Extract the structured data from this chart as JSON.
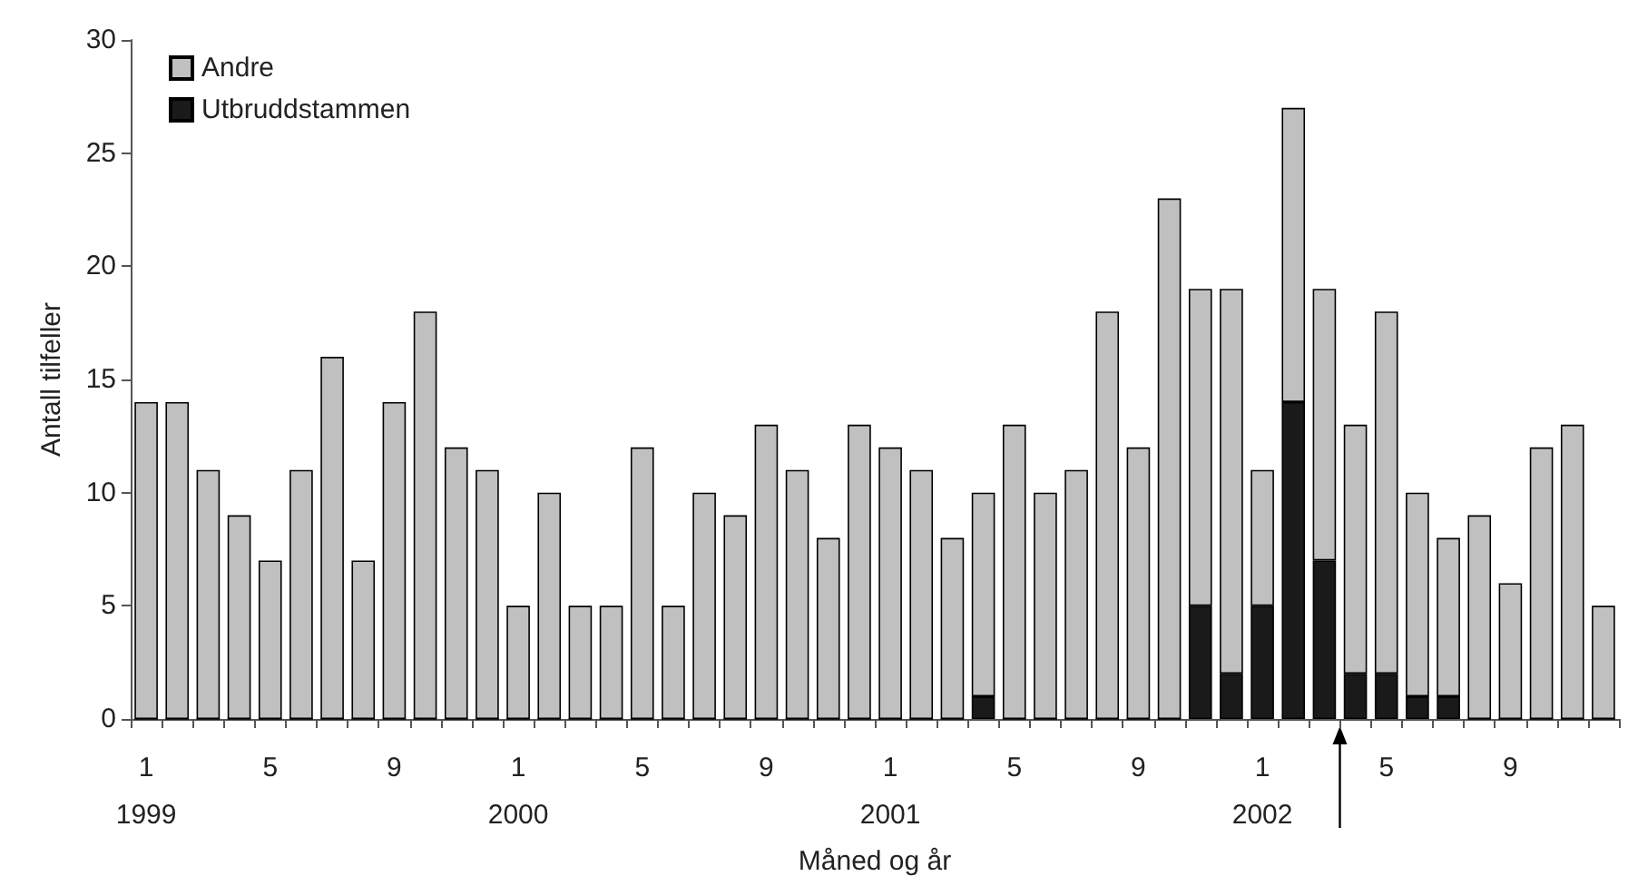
{
  "chart_data": {
    "type": "bar",
    "stacked": true,
    "xlabel": "Måned og år",
    "ylabel": "Antall tilfeller",
    "categories": [
      "1\n1999",
      null,
      null,
      null,
      "5",
      null,
      null,
      null,
      "9",
      null,
      null,
      null,
      "1\n2000",
      null,
      null,
      null,
      "5",
      null,
      null,
      null,
      "9",
      null,
      null,
      null,
      "1\n2001",
      null,
      null,
      null,
      "5",
      null,
      null,
      null,
      "9",
      null,
      null,
      null,
      "1\n2002",
      null,
      null,
      null,
      "5",
      null,
      null,
      null,
      "9",
      null,
      null,
      null
    ],
    "series": [
      {
        "name": "Utbruddstammen",
        "color": "#1a1a1a",
        "values": [
          0,
          0,
          0,
          0,
          0,
          0,
          0,
          0,
          0,
          0,
          0,
          0,
          0,
          0,
          0,
          0,
          0,
          0,
          0,
          0,
          0,
          0,
          0,
          0,
          0,
          0,
          0,
          1,
          0,
          0,
          0,
          0,
          0,
          0,
          5,
          2,
          5,
          14,
          7,
          2,
          2,
          1,
          1,
          0,
          0,
          0,
          0,
          0
        ]
      },
      {
        "name": "Andre",
        "color": "#c0c0c0",
        "values": [
          14,
          14,
          11,
          9,
          7,
          11,
          16,
          7,
          14,
          18,
          12,
          11,
          5,
          10,
          5,
          5,
          12,
          5,
          10,
          9,
          13,
          11,
          8,
          13,
          12,
          11,
          8,
          9,
          13,
          10,
          11,
          18,
          12,
          23,
          14,
          17,
          6,
          13,
          12,
          11,
          16,
          9,
          7,
          9,
          6,
          12,
          13,
          5
        ]
      }
    ],
    "ylim": [
      0,
      30
    ],
    "yticks": [
      0,
      5,
      10,
      15,
      20,
      25,
      30
    ],
    "grid": false,
    "legend": "top left"
  }
}
